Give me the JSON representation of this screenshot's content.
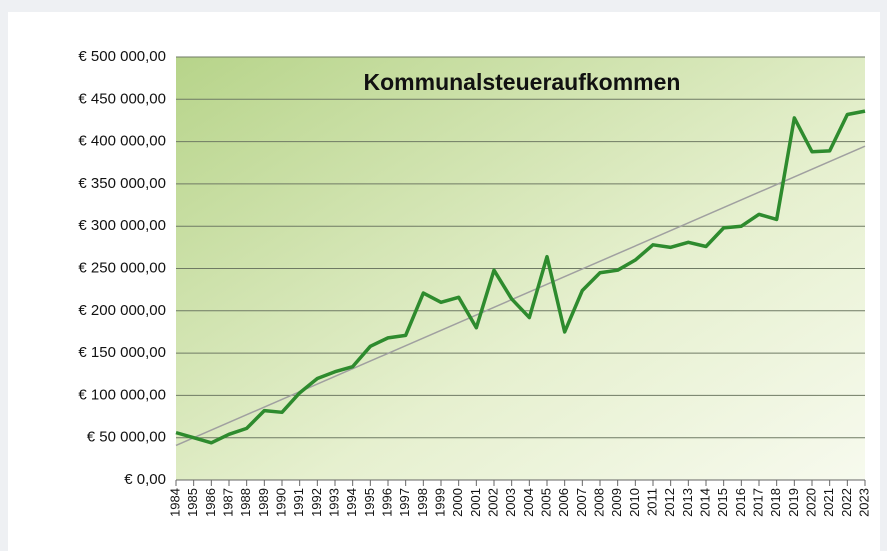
{
  "chart_data": {
    "type": "line",
    "title": "Kommunalsteueraufkommen",
    "categories": [
      "1984",
      "1985",
      "1986",
      "1987",
      "1988",
      "1989",
      "1990",
      "1991",
      "1992",
      "1993",
      "1994",
      "1995",
      "1996",
      "1997",
      "1998",
      "1999",
      "2000",
      "2001",
      "2002",
      "2003",
      "2004",
      "2005",
      "2006",
      "2007",
      "2008",
      "2009",
      "2010",
      "2011",
      "2012",
      "2013",
      "2014",
      "2015",
      "2016",
      "2017",
      "2018",
      "2019",
      "2020",
      "2021",
      "2022",
      "2023"
    ],
    "series": [
      {
        "name": "Kommunalsteueraufkommen",
        "color": "#2e8b2e",
        "values": [
          56000,
          50000,
          44000,
          54000,
          61000,
          82000,
          80000,
          103000,
          120000,
          128000,
          134000,
          158000,
          168000,
          171000,
          221000,
          210000,
          216000,
          180000,
          248000,
          214000,
          192000,
          264000,
          175000,
          224000,
          245000,
          248000,
          260000,
          278000,
          275000,
          281000,
          276000,
          298000,
          300000,
          314000,
          308000,
          428000,
          388000,
          389000,
          432000,
          436000
        ]
      }
    ],
    "trendline": true,
    "trend_color": "#a0a0a0",
    "ylim": [
      0,
      500000
    ],
    "yticks": [
      {
        "value": 0,
        "label": "€ 0,00"
      },
      {
        "value": 50000,
        "label": "€ 50 000,00"
      },
      {
        "value": 100000,
        "label": "€ 100 000,00"
      },
      {
        "value": 150000,
        "label": "€ 150 000,00"
      },
      {
        "value": 200000,
        "label": "€ 200 000,00"
      },
      {
        "value": 250000,
        "label": "€ 250 000,00"
      },
      {
        "value": 300000,
        "label": "€ 300 000,00"
      },
      {
        "value": 350000,
        "label": "€ 350 000,00"
      },
      {
        "value": 400000,
        "label": "€ 400 000,00"
      },
      {
        "value": 450000,
        "label": "€ 450 000,00"
      },
      {
        "value": 500000,
        "label": "€ 500 000,00"
      }
    ],
    "grid": true
  }
}
